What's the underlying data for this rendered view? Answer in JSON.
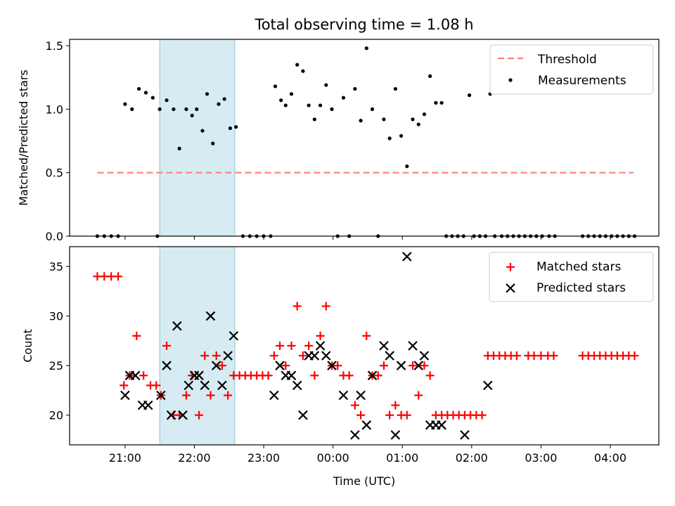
{
  "chart_data": [
    {
      "type": "scatter",
      "title": "Total observing time = 1.08 h",
      "xlabel": "",
      "ylabel": "Matched/Predicted stars",
      "ylim": [
        0,
        1.55
      ],
      "y_ticks": [
        "0.0",
        "0.5",
        "1.0",
        "1.5"
      ],
      "highlight_span_time": [
        "21:30",
        "22:35"
      ],
      "threshold": {
        "name": "Threshold",
        "value": 0.5,
        "x_range": [
          "20:36",
          "04:20"
        ],
        "color": "#ff7f7f",
        "style": "dashed"
      },
      "series": [
        {
          "name": "Measurements",
          "color": "#000000",
          "marker": "dot",
          "points": [
            [
              "20:36",
              0
            ],
            [
              "20:42",
              0
            ],
            [
              "20:48",
              0
            ],
            [
              "20:54",
              0
            ],
            [
              "21:00",
              1.04
            ],
            [
              "21:06",
              1.0
            ],
            [
              "21:12",
              1.16
            ],
            [
              "21:18",
              1.13
            ],
            [
              "21:24",
              1.09
            ],
            [
              "21:28",
              0
            ],
            [
              "21:30",
              1.0
            ],
            [
              "21:36",
              1.07
            ],
            [
              "21:42",
              1.0
            ],
            [
              "21:47",
              0.69
            ],
            [
              "21:53",
              1.0
            ],
            [
              "21:58",
              0.95
            ],
            [
              "22:02",
              1.0
            ],
            [
              "22:07",
              0.83
            ],
            [
              "22:11",
              1.12
            ],
            [
              "22:16",
              0.73
            ],
            [
              "22:21",
              1.04
            ],
            [
              "22:26",
              1.08
            ],
            [
              "22:31",
              0.85
            ],
            [
              "22:36",
              0.86
            ],
            [
              "22:42",
              0
            ],
            [
              "22:48",
              0
            ],
            [
              "22:54",
              0
            ],
            [
              "23:00",
              0
            ],
            [
              "23:06",
              0
            ],
            [
              "23:10",
              1.18
            ],
            [
              "23:15",
              1.07
            ],
            [
              "23:19",
              1.03
            ],
            [
              "23:24",
              1.12
            ],
            [
              "23:29",
              1.35
            ],
            [
              "23:34",
              1.3
            ],
            [
              "23:39",
              1.03
            ],
            [
              "23:44",
              0.92
            ],
            [
              "23:49",
              1.03
            ],
            [
              "23:54",
              1.19
            ],
            [
              "23:59",
              1.0
            ],
            [
              "00:04",
              0
            ],
            [
              "00:09",
              1.09
            ],
            [
              "00:14",
              0
            ],
            [
              "00:19",
              1.16
            ],
            [
              "00:24",
              0.91
            ],
            [
              "00:29",
              1.48
            ],
            [
              "00:34",
              1.0
            ],
            [
              "00:39",
              0
            ],
            [
              "00:44",
              0.92
            ],
            [
              "00:49",
              0.77
            ],
            [
              "00:54",
              1.16
            ],
            [
              "00:59",
              0.79
            ],
            [
              "01:04",
              0.55
            ],
            [
              "01:09",
              0.92
            ],
            [
              "01:14",
              0.88
            ],
            [
              "01:19",
              0.96
            ],
            [
              "01:24",
              1.26
            ],
            [
              "01:29",
              1.05
            ],
            [
              "01:34",
              1.05
            ],
            [
              "01:38",
              0
            ],
            [
              "01:43",
              0
            ],
            [
              "01:48",
              0
            ],
            [
              "01:53",
              0
            ],
            [
              "01:58",
              1.11
            ],
            [
              "02:02",
              0
            ],
            [
              "02:07",
              0
            ],
            [
              "02:12",
              0
            ],
            [
              "02:16",
              1.12
            ],
            [
              "02:20",
              0
            ],
            [
              "02:26",
              0
            ],
            [
              "02:31",
              0
            ],
            [
              "02:36",
              0
            ],
            [
              "02:41",
              0
            ],
            [
              "02:46",
              0
            ],
            [
              "02:51",
              0
            ],
            [
              "02:56",
              0
            ],
            [
              "03:01",
              0
            ],
            [
              "03:07",
              0
            ],
            [
              "03:12",
              0
            ],
            [
              "03:36",
              0
            ],
            [
              "03:41",
              0
            ],
            [
              "03:46",
              0
            ],
            [
              "03:51",
              0
            ],
            [
              "03:56",
              0
            ],
            [
              "04:01",
              0
            ],
            [
              "04:06",
              0
            ],
            [
              "04:11",
              0
            ],
            [
              "04:16",
              0
            ],
            [
              "04:21",
              0
            ]
          ]
        }
      ],
      "legend": {
        "position": "top-right",
        "entries": [
          "Threshold",
          "Measurements"
        ]
      }
    },
    {
      "type": "scatter",
      "title": "",
      "xlabel": "Time (UTC)",
      "ylabel": "Count",
      "ylim": [
        17,
        37
      ],
      "y_ticks": [
        "20",
        "25",
        "30",
        "35"
      ],
      "x_ticks": [
        "21:00",
        "22:00",
        "23:00",
        "00:00",
        "01:00",
        "02:00",
        "03:00",
        "04:00"
      ],
      "x_range": [
        "20:12",
        "04:42"
      ],
      "highlight_span_time": [
        "21:30",
        "22:35"
      ],
      "series": [
        {
          "name": "Matched stars",
          "color": "#ff0000",
          "marker": "plus",
          "points": [
            [
              "20:36",
              34
            ],
            [
              "20:42",
              34
            ],
            [
              "20:48",
              34
            ],
            [
              "20:54",
              34
            ],
            [
              "20:59",
              23
            ],
            [
              "21:04",
              24
            ],
            [
              "21:10",
              28
            ],
            [
              "21:16",
              24
            ],
            [
              "21:22",
              23
            ],
            [
              "21:27",
              23
            ],
            [
              "21:31",
              22
            ],
            [
              "21:36",
              27
            ],
            [
              "21:42",
              20
            ],
            [
              "21:47",
              20
            ],
            [
              "21:53",
              22
            ],
            [
              "21:58",
              24
            ],
            [
              "22:04",
              20
            ],
            [
              "22:09",
              26
            ],
            [
              "22:14",
              22
            ],
            [
              "22:19",
              26
            ],
            [
              "22:24",
              25
            ],
            [
              "22:29",
              22
            ],
            [
              "22:34",
              24
            ],
            [
              "22:39",
              24
            ],
            [
              "22:44",
              24
            ],
            [
              "22:49",
              24
            ],
            [
              "22:54",
              24
            ],
            [
              "22:59",
              24
            ],
            [
              "23:04",
              24
            ],
            [
              "23:09",
              26
            ],
            [
              "23:14",
              27
            ],
            [
              "23:19",
              25
            ],
            [
              "23:24",
              27
            ],
            [
              "23:29",
              31
            ],
            [
              "23:34",
              26
            ],
            [
              "23:39",
              27
            ],
            [
              "23:44",
              24
            ],
            [
              "23:49",
              28
            ],
            [
              "23:54",
              31
            ],
            [
              "23:59",
              25
            ],
            [
              "00:04",
              25
            ],
            [
              "00:09",
              24
            ],
            [
              "00:14",
              24
            ],
            [
              "00:19",
              21
            ],
            [
              "00:24",
              20
            ],
            [
              "00:29",
              28
            ],
            [
              "00:34",
              24
            ],
            [
              "00:39",
              24
            ],
            [
              "00:44",
              25
            ],
            [
              "00:49",
              20
            ],
            [
              "00:54",
              21
            ],
            [
              "00:59",
              20
            ],
            [
              "01:04",
              20
            ],
            [
              "01:09",
              25
            ],
            [
              "01:14",
              22
            ],
            [
              "01:19",
              25
            ],
            [
              "01:24",
              24
            ],
            [
              "01:29",
              20
            ],
            [
              "01:34",
              20
            ],
            [
              "01:39",
              20
            ],
            [
              "01:44",
              20
            ],
            [
              "01:49",
              20
            ],
            [
              "01:54",
              20
            ],
            [
              "01:59",
              20
            ],
            [
              "02:04",
              20
            ],
            [
              "02:09",
              20
            ],
            [
              "02:14",
              26
            ],
            [
              "02:19",
              26
            ],
            [
              "02:24",
              26
            ],
            [
              "02:29",
              26
            ],
            [
              "02:34",
              26
            ],
            [
              "02:39",
              26
            ],
            [
              "02:49",
              26
            ],
            [
              "02:54",
              26
            ],
            [
              "03:00",
              26
            ],
            [
              "03:06",
              26
            ],
            [
              "03:11",
              26
            ],
            [
              "03:36",
              26
            ],
            [
              "03:41",
              26
            ],
            [
              "03:46",
              26
            ],
            [
              "03:51",
              26
            ],
            [
              "03:56",
              26
            ],
            [
              "04:01",
              26
            ],
            [
              "04:06",
              26
            ],
            [
              "04:11",
              26
            ],
            [
              "04:16",
              26
            ],
            [
              "04:21",
              26
            ]
          ]
        },
        {
          "name": "Predicted stars",
          "color": "#000000",
          "marker": "x",
          "points": [
            [
              "21:00",
              22
            ],
            [
              "21:04",
              24
            ],
            [
              "21:09",
              24
            ],
            [
              "21:15",
              21
            ],
            [
              "21:20",
              21
            ],
            [
              "21:31",
              22
            ],
            [
              "21:36",
              25
            ],
            [
              "21:40",
              20
            ],
            [
              "21:45",
              29
            ],
            [
              "21:50",
              20
            ],
            [
              "21:55",
              23
            ],
            [
              "22:00",
              24
            ],
            [
              "22:04",
              24
            ],
            [
              "22:09",
              23
            ],
            [
              "22:14",
              30
            ],
            [
              "22:19",
              25
            ],
            [
              "22:24",
              23
            ],
            [
              "22:29",
              26
            ],
            [
              "22:34",
              28
            ],
            [
              "23:09",
              22
            ],
            [
              "23:14",
              25
            ],
            [
              "23:19",
              24
            ],
            [
              "23:24",
              24
            ],
            [
              "23:29",
              23
            ],
            [
              "23:34",
              20
            ],
            [
              "23:39",
              26
            ],
            [
              "23:44",
              26
            ],
            [
              "23:49",
              27
            ],
            [
              "23:54",
              26
            ],
            [
              "23:59",
              25
            ],
            [
              "00:09",
              22
            ],
            [
              "00:19",
              18
            ],
            [
              "00:24",
              22
            ],
            [
              "00:29",
              19
            ],
            [
              "00:34",
              24
            ],
            [
              "00:44",
              27
            ],
            [
              "00:49",
              26
            ],
            [
              "00:54",
              18
            ],
            [
              "00:59",
              25
            ],
            [
              "01:04",
              36
            ],
            [
              "01:09",
              27
            ],
            [
              "01:14",
              25
            ],
            [
              "01:19",
              26
            ],
            [
              "01:24",
              19
            ],
            [
              "01:29",
              19
            ],
            [
              "01:34",
              19
            ],
            [
              "01:54",
              18
            ],
            [
              "02:14",
              23
            ]
          ]
        }
      ],
      "legend": {
        "position": "top-right",
        "entries": [
          "Matched stars",
          "Predicted stars"
        ]
      }
    }
  ]
}
